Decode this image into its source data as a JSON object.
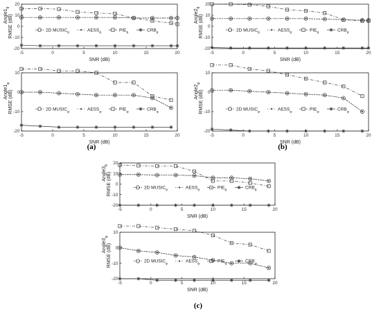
{
  "chart_data": [
    {
      "id": "a1",
      "group": "a",
      "type": "line",
      "ylabel_lines": [
        "Angle1",
        "RMSE (dB)"
      ],
      "ylabel_sub": "θ",
      "xlabel": "SNR (dB)",
      "xlim": [
        -5,
        20
      ],
      "ylim": [
        -20,
        20
      ],
      "xticks": [
        -5,
        0,
        5,
        10,
        15,
        20
      ],
      "yticks": [
        -20,
        -10,
        0,
        10,
        20
      ],
      "legend": "inside-middle",
      "series": [
        {
          "name": "2D MUSIC",
          "sub": "θ",
          "marker": "circle",
          "x": [
            -5,
            -2,
            1,
            4,
            7,
            10,
            13,
            16,
            19,
            20
          ],
          "y": [
            8,
            8,
            8,
            8,
            8,
            8,
            7.5,
            7.5,
            7.5,
            7.5
          ]
        },
        {
          "name": "AESS",
          "sub": "θ",
          "marker": "dot",
          "x": [
            -5,
            -2,
            1,
            4,
            7,
            10,
            13,
            16,
            19,
            20
          ],
          "y": [
            8,
            8,
            8,
            8,
            8,
            8,
            7.5,
            7.5,
            7.5,
            7.5
          ]
        },
        {
          "name": "PIE",
          "sub": "θ",
          "marker": "square",
          "x": [
            -5,
            -2,
            1,
            4,
            7,
            10,
            13,
            16,
            19,
            20
          ],
          "y": [
            16,
            16,
            15.5,
            13,
            12,
            11.5,
            7.5,
            5,
            3,
            2
          ]
        },
        {
          "name": "CRB",
          "sub": "θ",
          "marker": "star",
          "x": [
            -5,
            -2,
            1,
            4,
            7,
            10,
            13,
            16,
            19,
            20
          ],
          "y": [
            -17,
            -17.5,
            -17.5,
            -17.5,
            -17.5,
            -17.5,
            -17.5,
            -17.5,
            -17.5,
            -17.5
          ]
        }
      ]
    },
    {
      "id": "a2",
      "group": "a",
      "type": "line",
      "ylabel_lines": [
        "Angle1",
        "RMSE (dB)"
      ],
      "ylabel_sub": "φ",
      "xlabel": "SNR (dB)",
      "xlim": [
        -5,
        20
      ],
      "ylim": [
        -20,
        10
      ],
      "xticks": [
        -5,
        0,
        5,
        10,
        15,
        20
      ],
      "yticks": [
        -20,
        -10,
        0,
        10
      ],
      "legend": "inside-lower",
      "series": [
        {
          "name": "2D MUSIC",
          "sub": "φ",
          "marker": "circle",
          "x": [
            -5,
            -2,
            1,
            4,
            7,
            10,
            13,
            16,
            19
          ],
          "y": [
            0,
            0,
            -0.5,
            -1,
            -1.5,
            -1.5,
            -1.5,
            -3,
            -8
          ]
        },
        {
          "name": "AESS",
          "sub": "φ",
          "marker": "dot",
          "x": [
            -5,
            -2,
            1,
            4,
            7,
            10,
            13,
            16,
            19
          ],
          "y": [
            0,
            0,
            -0.5,
            -1,
            -1.5,
            -1.5,
            -1.5,
            -3,
            -8
          ]
        },
        {
          "name": "PIE",
          "sub": "φ",
          "marker": "square",
          "x": [
            -5,
            -2,
            1,
            4,
            7,
            10,
            13,
            16,
            19
          ],
          "y": [
            12,
            12,
            11,
            11,
            10,
            5,
            5,
            -2,
            -4
          ]
        },
        {
          "name": "CRB",
          "sub": "φ",
          "marker": "star",
          "x": [
            -5,
            -2,
            1,
            4,
            7,
            10,
            13,
            16,
            19
          ],
          "y": [
            -17,
            -17.5,
            -18,
            -18,
            -18,
            -18,
            -18,
            -18,
            -18
          ]
        }
      ]
    },
    {
      "id": "b1",
      "group": "b",
      "type": "line",
      "ylabel_lines": [
        "Angle2",
        "RMSE (dB)"
      ],
      "ylabel_sub": "θ",
      "xlabel": "SNR (dB)",
      "xlim": [
        -5,
        20
      ],
      "ylim": [
        -20,
        20
      ],
      "xticks": [
        -5,
        0,
        5,
        10,
        15,
        20
      ],
      "yticks": [
        -20,
        -10,
        0,
        10,
        20
      ],
      "legend": "inside-middle",
      "series": [
        {
          "name": "2D MUSIC",
          "sub": "θ",
          "marker": "circle",
          "x": [
            -5,
            -2,
            1,
            4,
            7,
            10,
            13,
            16,
            19,
            20
          ],
          "y": [
            7,
            7,
            7,
            7,
            7,
            7,
            6.5,
            6,
            5.5,
            5.5
          ]
        },
        {
          "name": "AESS",
          "sub": "θ",
          "marker": "dot",
          "x": [
            -5,
            -2,
            1,
            4,
            7,
            10,
            13,
            16,
            19,
            20
          ],
          "y": [
            7,
            7,
            7,
            7,
            7,
            7,
            6.5,
            6,
            5.5,
            5.5
          ]
        },
        {
          "name": "PIE",
          "sub": "θ",
          "marker": "square",
          "x": [
            -5,
            -2,
            1,
            4,
            7,
            10,
            13,
            16,
            19,
            20
          ],
          "y": [
            20,
            20,
            19.5,
            18,
            15,
            14,
            12,
            6,
            5,
            5
          ]
        },
        {
          "name": "CRB",
          "sub": "θ",
          "marker": "star",
          "x": [
            -5,
            -2,
            1,
            4,
            7,
            10,
            13,
            16,
            19,
            20
          ],
          "y": [
            -19,
            -19.5,
            -19.5,
            -19.5,
            -19.5,
            -19.5,
            -19.5,
            -19.5,
            -19.5,
            -19.5
          ]
        }
      ]
    },
    {
      "id": "b2",
      "group": "b",
      "type": "line",
      "ylabel_lines": [
        "Angle2",
        "RMSE (dB)"
      ],
      "ylabel_sub": "φ",
      "xlabel": "SNR (dB)",
      "xlim": [
        -5,
        20
      ],
      "ylim": [
        -20,
        10
      ],
      "xticks": [
        -5,
        0,
        5,
        10,
        15,
        20
      ],
      "yticks": [
        -20,
        -10,
        0,
        10
      ],
      "legend": "inside-lower",
      "series": [
        {
          "name": "2D MUSIC",
          "sub": "φ",
          "marker": "circle",
          "x": [
            -5,
            -2,
            1,
            4,
            7,
            10,
            13,
            16,
            19
          ],
          "y": [
            1,
            1,
            0.5,
            0,
            -0.5,
            -1,
            -1.5,
            -3,
            -10
          ]
        },
        {
          "name": "AESS",
          "sub": "φ",
          "marker": "dot",
          "x": [
            -5,
            -2,
            1,
            4,
            7,
            10,
            13,
            16,
            19
          ],
          "y": [
            1,
            1,
            0.5,
            0,
            -0.5,
            -1,
            -1.5,
            -3,
            -10
          ]
        },
        {
          "name": "PIE",
          "sub": "φ",
          "marker": "square",
          "x": [
            -5,
            -2,
            1,
            4,
            7,
            10,
            13,
            16,
            19
          ],
          "y": [
            14,
            14,
            12,
            11,
            9,
            7,
            5,
            3,
            -2
          ]
        },
        {
          "name": "CRB",
          "sub": "φ",
          "marker": "star",
          "x": [
            -5,
            -2,
            1,
            4,
            7,
            10,
            13,
            16,
            19
          ],
          "y": [
            -19,
            -19.5,
            -20,
            -20,
            -20,
            -20,
            -20,
            -20,
            -20
          ]
        }
      ]
    },
    {
      "id": "c1",
      "group": "c",
      "type": "line",
      "ylabel_lines": [
        "Angle3",
        "RMSE (dB)"
      ],
      "ylabel_sub": "θ",
      "xlabel": "SNR (dB)",
      "xlim": [
        -5,
        20
      ],
      "ylim": [
        -20,
        20
      ],
      "xticks": [
        -5,
        0,
        5,
        10,
        15,
        20
      ],
      "yticks": [
        -20,
        -10,
        0,
        10,
        20
      ],
      "legend": "inside-middle",
      "series": [
        {
          "name": "2D MUSIC",
          "sub": "θ",
          "marker": "circle",
          "x": [
            -5,
            -2,
            1,
            4,
            7,
            10,
            13,
            16,
            19
          ],
          "y": [
            9,
            9,
            8.5,
            8.5,
            8,
            6,
            6,
            5,
            3
          ]
        },
        {
          "name": "AESS",
          "sub": "θ",
          "marker": "dot",
          "x": [
            -5,
            -2,
            1,
            4,
            7,
            10,
            13,
            16,
            19
          ],
          "y": [
            9,
            9,
            8.5,
            8.5,
            8,
            6,
            6,
            5,
            3
          ]
        },
        {
          "name": "PIE",
          "sub": "θ",
          "marker": "square",
          "x": [
            -5,
            -2,
            1,
            4,
            7,
            10,
            13,
            16,
            19
          ],
          "y": [
            18,
            17.5,
            17,
            17,
            12,
            3,
            3,
            1,
            -2
          ]
        },
        {
          "name": "CRB",
          "sub": "θ",
          "marker": "star",
          "x": [
            -5,
            -2,
            1,
            4,
            7,
            10,
            13,
            16,
            19
          ],
          "y": [
            -20,
            -20,
            -20,
            -20,
            -20,
            -20,
            -20,
            -20,
            -20
          ]
        }
      ]
    },
    {
      "id": "c2",
      "group": "c",
      "type": "line",
      "ylabel_lines": [
        "Angle3",
        "RMSE (dB)"
      ],
      "ylabel_sub": "φ",
      "xlabel": "SNR (dB)",
      "xlim": [
        -5,
        20
      ],
      "ylim": [
        -20,
        10
      ],
      "xticks": [
        -5,
        0,
        5,
        10,
        15,
        20
      ],
      "yticks": [
        -20,
        -10,
        0,
        10
      ],
      "legend": "inside-lower",
      "series": [
        {
          "name": "2D MUSIC",
          "sub": "φ",
          "marker": "circle",
          "x": [
            -5,
            -2,
            1,
            4,
            7,
            10,
            13,
            16,
            19
          ],
          "y": [
            0,
            -2,
            -3,
            -5,
            -6,
            -8,
            -10,
            -10,
            -13
          ]
        },
        {
          "name": "AESS",
          "sub": "φ",
          "marker": "dot",
          "x": [
            -5,
            -2,
            1,
            4,
            7,
            10,
            13,
            16,
            19
          ],
          "y": [
            0,
            -2,
            -3,
            -5,
            -6,
            -8,
            -10,
            -10,
            -13
          ]
        },
        {
          "name": "PIE",
          "sub": "φ",
          "marker": "square",
          "x": [
            -5,
            -2,
            1,
            4,
            7,
            10,
            13,
            16,
            19
          ],
          "y": [
            14,
            14,
            13,
            12,
            11,
            8,
            3,
            2,
            -2
          ]
        },
        {
          "name": "CRB",
          "sub": "φ",
          "marker": "star",
          "x": [
            -5,
            -2,
            1,
            4,
            7,
            10,
            13,
            16,
            19
          ],
          "y": [
            -20,
            -20,
            -21,
            -21,
            -21,
            -21,
            -21,
            -21,
            -21
          ]
        }
      ]
    }
  ],
  "captions": {
    "a": "(a)",
    "b": "(b)",
    "c": "(c)"
  },
  "colors": {
    "line": "#333333",
    "axis": "#000000",
    "marker": "#333333"
  }
}
